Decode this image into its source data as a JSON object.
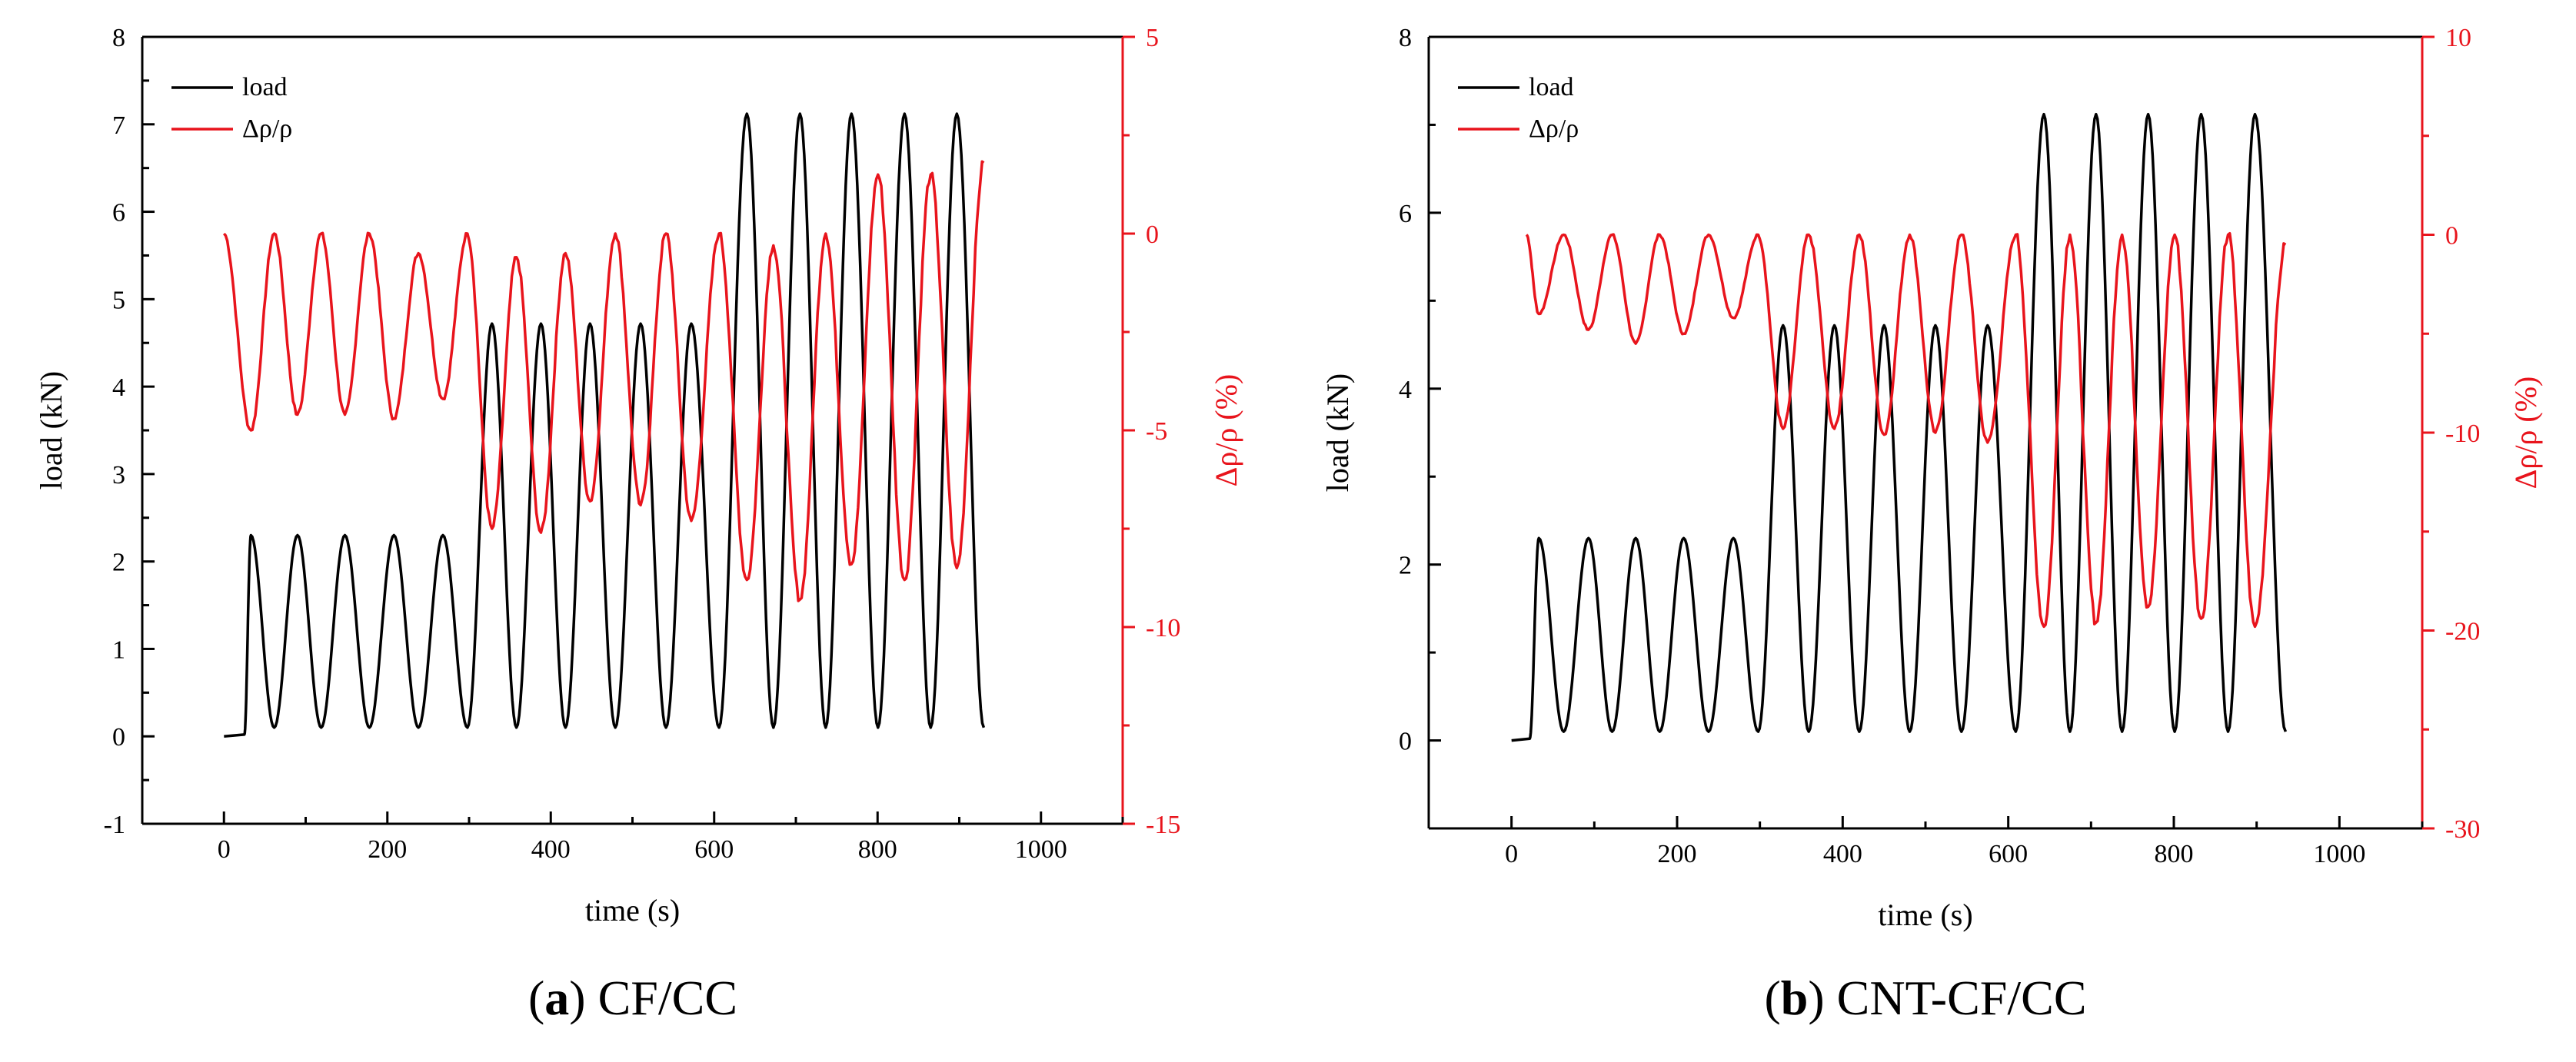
{
  "chart_data": [
    {
      "panel_id": "a",
      "type": "line",
      "caption_letter": "a",
      "caption_text": "CF/CC",
      "xlabel": "time (s)",
      "ylabel": "load (kN)",
      "y2label": "Δρ/ρ (%)",
      "xlim": [
        -100,
        1100
      ],
      "ylim": [
        -1,
        8
      ],
      "y2lim": [
        -15,
        5
      ],
      "x_ticks": [
        0,
        200,
        400,
        600,
        800,
        1000
      ],
      "y_ticks": [
        -1,
        0,
        1,
        2,
        3,
        4,
        5,
        6,
        7,
        8
      ],
      "y2_ticks": [
        5,
        0,
        -5,
        -10,
        -15
      ],
      "legend": {
        "position": "top-left",
        "entries": [
          "load",
          "Δρ/ρ"
        ]
      },
      "load_series": {
        "name": "load",
        "color": "#000000",
        "start": [
          [
            0,
            0
          ],
          [
            25,
            0.02
          ]
        ],
        "end_x": 930,
        "base": 0.1,
        "blocks": [
          {
            "peak": 2.3,
            "peak_times": [
              33,
              90,
              148,
              208,
              268
            ]
          },
          {
            "peak": 4.72,
            "peak_times": [
              328,
              388,
              448,
              510,
              572
            ]
          },
          {
            "peak": 7.12,
            "peak_times": [
              640,
              705,
              768,
              833,
              897
            ]
          }
        ]
      },
      "resistance_series": {
        "name": "Δρ/ρ",
        "color": "#e8141c",
        "start_x": 0,
        "end_x": 930,
        "end_value": 1.8,
        "peak_values": [
          0,
          0,
          0,
          0,
          -0.5,
          0,
          -0.6,
          -0.5,
          0,
          0,
          0,
          -0.3,
          0,
          1.5,
          1.5
        ],
        "trough_times": [
          33,
          90,
          148,
          208,
          268,
          328,
          388,
          448,
          510,
          572,
          640,
          705,
          768,
          833,
          897
        ],
        "trough_values": [
          -5.0,
          -4.6,
          -4.6,
          -4.7,
          -4.2,
          -7.5,
          -7.6,
          -6.8,
          -6.9,
          -7.3,
          -8.8,
          -9.3,
          -8.4,
          -8.8,
          -8.5
        ]
      }
    },
    {
      "panel_id": "b",
      "type": "line",
      "caption_letter": "b",
      "caption_text": "CNT-CF/CC",
      "xlabel": "time (s)",
      "ylabel": "load (kN)",
      "y2label": "Δρ/ρ (%)",
      "xlim": [
        -100,
        1100
      ],
      "ylim": [
        -1,
        8
      ],
      "y2lim": [
        -30,
        10
      ],
      "x_ticks": [
        0,
        200,
        400,
        600,
        800,
        1000
      ],
      "y_ticks": [
        0,
        2,
        4,
        6,
        8
      ],
      "y2_ticks": [
        10,
        0,
        -10,
        -20,
        -30
      ],
      "legend": {
        "position": "top-left",
        "entries": [
          "load",
          "Δρ/ρ"
        ]
      },
      "load_series": {
        "name": "load",
        "color": "#000000",
        "start": [
          [
            0,
            0
          ],
          [
            22,
            0.02
          ]
        ],
        "end_x": 935,
        "base": 0.1,
        "blocks": [
          {
            "peak": 2.3,
            "peak_times": [
              33,
              93,
              150,
              208,
              268
            ]
          },
          {
            "peak": 4.72,
            "peak_times": [
              328,
              390,
              450,
              512,
              575
            ]
          },
          {
            "peak": 7.12,
            "peak_times": [
              643,
              706,
              769,
              833,
              898
            ]
          }
        ]
      },
      "resistance_series": {
        "name": "Δρ/ρ",
        "color": "#e8141c",
        "start_x": 18,
        "end_x": 935,
        "end_value": -0.5,
        "peak_values": [
          0,
          0,
          0,
          0,
          0,
          0,
          0,
          0,
          0,
          0,
          0,
          0,
          0,
          0,
          0
        ],
        "trough_times": [
          33,
          93,
          150,
          208,
          268,
          328,
          390,
          450,
          512,
          575,
          643,
          706,
          769,
          833,
          898
        ],
        "trough_values": [
          -4.0,
          -4.8,
          -5.5,
          -5.0,
          -4.2,
          -9.8,
          -9.8,
          -10.1,
          -10.0,
          -10.5,
          -19.8,
          -19.6,
          -18.8,
          -19.4,
          -19.8
        ]
      }
    }
  ]
}
